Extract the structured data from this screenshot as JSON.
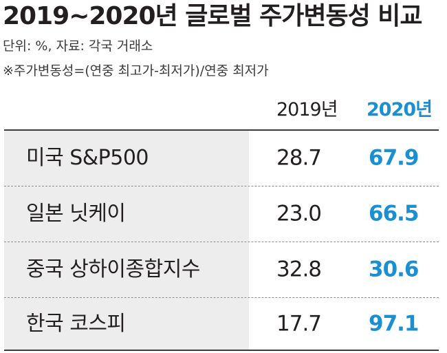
{
  "header": {
    "title": "2019~2020년 글로벌 주가변동성 비교",
    "unit_note": "단위: %, 자료: 각국 거래소",
    "formula_note": "※주가변동성=(연중 최고가-최저가)/연중 최저가"
  },
  "colors": {
    "accent": "#1a8fd1",
    "name_cell_bg": "#ededee",
    "text": "#231f20"
  },
  "chart_data": {
    "type": "table",
    "title": "2019~2020년 글로벌 주가변동성 비교",
    "columns": [
      "2019년",
      "2020년"
    ],
    "rows": [
      {
        "name": "미국 S&P500",
        "y2019": "28.7",
        "y2020": "67.9"
      },
      {
        "name": "일본 닛케이",
        "y2019": "23.0",
        "y2020": "66.5"
      },
      {
        "name": "중국 상하이종합지수",
        "y2019": "32.8",
        "y2020": "30.6"
      },
      {
        "name": "한국 코스피",
        "y2019": "17.7",
        "y2020": "97.1"
      }
    ]
  }
}
